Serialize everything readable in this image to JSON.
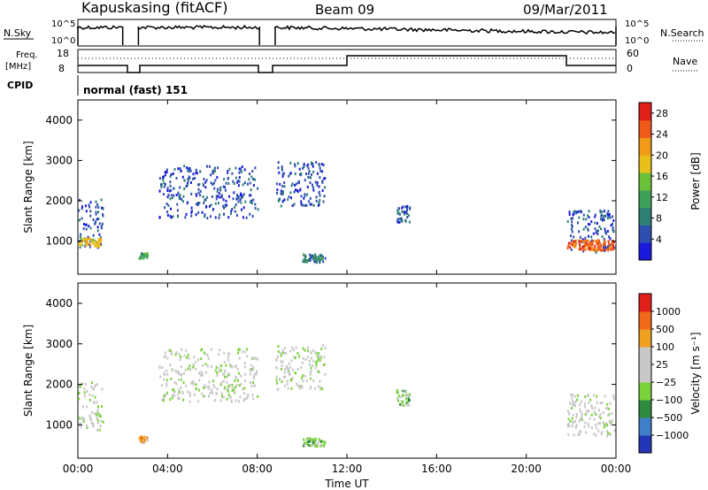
{
  "header": {
    "station": "Kapuskasing (fitACF)",
    "beam": "Beam 09",
    "date": "09/Mar/2011"
  },
  "aux_panels": {
    "nsky_label": "N.Sky",
    "nsky_ticks": [
      "10^5",
      "10^0"
    ],
    "nsearch_label": "N.Search",
    "nsearch_ticks": [
      "10^5",
      "10^0"
    ],
    "freq_label": "Freq.",
    "freq_units": "[MHz]",
    "freq_ticks": [
      "18",
      "8"
    ],
    "nave_label": "Nave",
    "nave_ticks": [
      "60",
      "0"
    ],
    "cpid_label": "CPID",
    "cpid_value": "normal (fast) 151"
  },
  "colors": {
    "power_scale": [
      "#1a1adf",
      "#2f4fb0",
      "#2e7f74",
      "#3fa05a",
      "#6cc13a",
      "#e8c01a",
      "#f09a1a",
      "#f05a1a",
      "#e0201a"
    ],
    "velocity_scale": [
      "#2436b8",
      "#3f7fc8",
      "#2e8a3e",
      "#7ad33a",
      "#c8c8c8",
      "#c8c8c8",
      "#f0a020",
      "#f06a1a",
      "#e0201a"
    ],
    "ground_scatter": "#b8b8b8"
  },
  "chart_data": [
    {
      "type": "heatmap",
      "title": "Power",
      "xlabel": "Time UT",
      "ylabel": "Slant Range [km]",
      "xlim": [
        0,
        24
      ],
      "ylim": [
        180,
        4500
      ],
      "x_ticks": [
        "00:00",
        "04:00",
        "08:00",
        "12:00",
        "16:00",
        "20:00",
        "00:00"
      ],
      "y_ticks": [
        "1000",
        "2000",
        "3000",
        "4000"
      ],
      "colorbar_label": "Power [dB]",
      "colorbar_ticks": [
        "4",
        "8",
        "12",
        "16",
        "20",
        "24",
        "28"
      ],
      "colorbar_range": [
        0,
        30
      ],
      "echo_regions": [
        {
          "t": [
            0.0,
            1.1
          ],
          "r": [
            850,
            2100
          ],
          "level": 1
        },
        {
          "t": [
            0.0,
            1.0
          ],
          "r": [
            900,
            1100
          ],
          "level": 5
        },
        {
          "t": [
            2.7,
            3.1
          ],
          "r": [
            600,
            750
          ],
          "level": 3
        },
        {
          "t": [
            3.6,
            8.0
          ],
          "r": [
            1600,
            2900
          ],
          "level": 1
        },
        {
          "t": [
            8.8,
            11.0
          ],
          "r": [
            1900,
            3000
          ],
          "level": 1
        },
        {
          "t": [
            10.0,
            11.0
          ],
          "r": [
            500,
            700
          ],
          "level": 2
        },
        {
          "t": [
            14.2,
            14.8
          ],
          "r": [
            1500,
            1900
          ],
          "level": 1
        },
        {
          "t": [
            21.8,
            23.9
          ],
          "r": [
            750,
            1800
          ],
          "level": 1
        },
        {
          "t": [
            21.8,
            23.9
          ],
          "r": [
            800,
            1050
          ],
          "level": 7
        }
      ]
    },
    {
      "type": "heatmap",
      "title": "Velocity",
      "xlabel": "Time UT",
      "ylabel": "Slant Range [km]",
      "xlim": [
        0,
        24
      ],
      "ylim": [
        180,
        4500
      ],
      "x_ticks": [
        "00:00",
        "04:00",
        "08:00",
        "12:00",
        "16:00",
        "20:00",
        "00:00"
      ],
      "y_ticks": [
        "1000",
        "2000",
        "3000",
        "4000"
      ],
      "colorbar_label": "Velocity [m s⁻¹]",
      "colorbar_ticks": [
        "1000",
        "500",
        "100",
        "25",
        "−25",
        "−100",
        "−500",
        "−1000"
      ],
      "colorbar_range": [
        -1000,
        1000
      ],
      "echo_regions": [
        {
          "t": [
            0.0,
            1.1
          ],
          "r": [
            850,
            2100
          ],
          "level": 4
        },
        {
          "t": [
            2.7,
            3.1
          ],
          "r": [
            600,
            750
          ],
          "level": 6
        },
        {
          "t": [
            3.6,
            8.0
          ],
          "r": [
            1600,
            2900
          ],
          "level": 4
        },
        {
          "t": [
            8.8,
            11.0
          ],
          "r": [
            1900,
            3000
          ],
          "level": 4
        },
        {
          "t": [
            10.0,
            11.0
          ],
          "r": [
            500,
            700
          ],
          "level": 3
        },
        {
          "t": [
            14.2,
            14.8
          ],
          "r": [
            1500,
            1900
          ],
          "level": 3
        },
        {
          "t": [
            21.8,
            23.9
          ],
          "r": [
            750,
            1800
          ],
          "level": 4
        }
      ]
    }
  ]
}
